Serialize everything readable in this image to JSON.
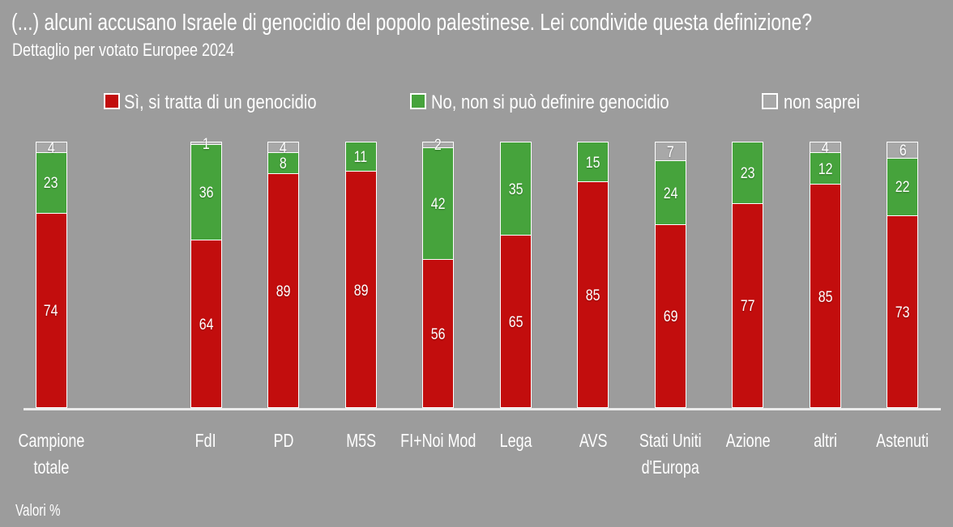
{
  "slide": {
    "title": "(...) alcuni accusano Israele di genocidio del popolo palestinese. Lei condivide questa definizione?",
    "subtitle": "Dettaglio per votato Europee 2024",
    "footnote": "Valori %"
  },
  "colors": {
    "background": "#9c9c9c",
    "si": "#c20d0d",
    "no": "#46a33c",
    "non_saprei": "#a8a8a8",
    "text": "#ffffff",
    "axis": "#ebebeb",
    "segment_border": "#ffffff"
  },
  "legend": {
    "items": [
      {
        "key": "si",
        "label": "Sì, si tratta di un genocidio",
        "color": "#c20d0d"
      },
      {
        "key": "no",
        "label": "No, non si può definire genocidio",
        "color": "#46a33c"
      },
      {
        "key": "non_saprei",
        "label": "non saprei",
        "color": "#a8a8a8"
      }
    ]
  },
  "chart_data": {
    "type": "bar",
    "variant": "stacked-percent-column",
    "title": "(...) alcuni accusano Israele di genocidio del popolo palestinese. Lei condivide questa definizione?",
    "subtitle": "Dettaglio per votato Europee 2024",
    "categories": [
      "Campione totale",
      "FdI",
      "PD",
      "M5S",
      "FI+Noi Mod",
      "Lega",
      "AVS",
      "Stati Uniti d'Europa",
      "Azione",
      "altri",
      "Astenuti"
    ],
    "series": [
      {
        "name": "Sì, si tratta di un genocidio",
        "key": "si",
        "color": "#c20d0d",
        "values": [
          74,
          64,
          89,
          89,
          56,
          65,
          85,
          69,
          77,
          85,
          73
        ]
      },
      {
        "name": "No, non si può definire genocidio",
        "key": "no",
        "color": "#46a33c",
        "values": [
          23,
          36,
          8,
          11,
          42,
          35,
          15,
          24,
          23,
          12,
          22
        ]
      },
      {
        "name": "non saprei",
        "key": "non_saprei",
        "color": "#a8a8a8",
        "values": [
          4,
          1,
          4,
          0,
          2,
          0,
          0,
          7,
          0,
          4,
          6
        ]
      }
    ],
    "value_labels": true,
    "ylim": [
      0,
      100
    ],
    "grid": false,
    "legend_position": "top",
    "gap_after_category": "Campione totale",
    "units": "Valori %"
  }
}
